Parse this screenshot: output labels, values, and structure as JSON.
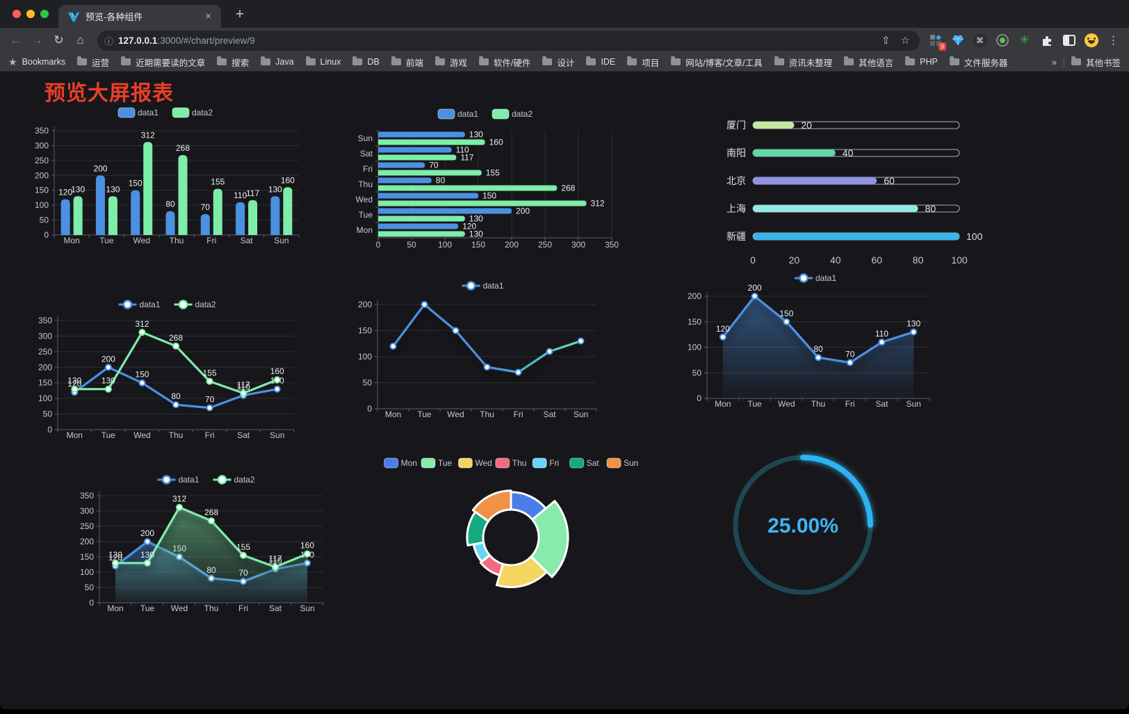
{
  "browser": {
    "tab_title": "预览-各种组件",
    "url_host": "127.0.0.1",
    "url_rest": ":3000/#/chart/preview/9",
    "bookmarks_label": "Bookmarks",
    "bookmarks": [
      "运营",
      "近期需要读的文章",
      "搜索",
      "Java",
      "Linux",
      "DB",
      "前端",
      "游戏",
      "软件/硬件",
      "设计",
      "IDE",
      "项目",
      "网站/博客/文章/工具",
      "资讯未整理",
      "其他语言",
      "PHP",
      "文件服务器"
    ],
    "other_bookmarks": "其他书签",
    "extension_badge": "9"
  },
  "icons": {
    "back": "←",
    "forward": "→",
    "reload": "↻",
    "home": "⌂",
    "info": "ⓘ",
    "share": "⇧",
    "star": "☆",
    "menu": "⋮",
    "close": "×",
    "new_tab": "+",
    "chevron": "»",
    "command": "⌘",
    "green_star": "✳",
    "bookmarks_star": "★"
  },
  "page": {
    "title": "预览大屏报表",
    "title_color": "#e93f28",
    "background": "#17171b"
  },
  "chart_data": [
    {
      "id": "grouped-bar",
      "type": "bar",
      "categories": [
        "Mon",
        "Tue",
        "Wed",
        "Thu",
        "Fri",
        "Sat",
        "Sun"
      ],
      "series": [
        {
          "name": "data1",
          "color": "#4b91e2",
          "values": [
            120,
            200,
            150,
            80,
            70,
            110,
            130
          ]
        },
        {
          "name": "data2",
          "color": "#7deda9",
          "values": [
            130,
            130,
            312,
            268,
            155,
            117,
            160
          ]
        }
      ],
      "ylim": [
        0,
        350
      ],
      "yticks": [
        0,
        50,
        100,
        150,
        200,
        250,
        300,
        350
      ],
      "legend_position": "top",
      "grid": true
    },
    {
      "id": "grouped-hbar",
      "type": "hbar",
      "categories": [
        "Mon",
        "Tue",
        "Wed",
        "Thu",
        "Fri",
        "Sat",
        "Sun"
      ],
      "series": [
        {
          "name": "data1",
          "color": "#4b91e2",
          "values": [
            120,
            200,
            150,
            80,
            70,
            110,
            130
          ]
        },
        {
          "name": "data2",
          "color": "#7deda9",
          "values": [
            130,
            130,
            312,
            268,
            155,
            117,
            160
          ]
        }
      ],
      "xlim": [
        0,
        350
      ],
      "xticks": [
        0,
        50,
        100,
        150,
        200,
        250,
        300,
        350
      ],
      "legend_position": "top",
      "grid": true
    },
    {
      "id": "progress-bars",
      "type": "progress",
      "max": 100,
      "items": [
        {
          "label": "厦门",
          "value": 20,
          "color": "#c4e7a0"
        },
        {
          "label": "南阳",
          "value": 40,
          "color": "#5cd9a6"
        },
        {
          "label": "北京",
          "value": 60,
          "color": "#8e93e3"
        },
        {
          "label": "上海",
          "value": 80,
          "color": "#92e9e3"
        },
        {
          "label": "新疆",
          "value": 100,
          "color": "#38b6e9"
        }
      ],
      "xticks": [
        0,
        20,
        40,
        60,
        80,
        100
      ]
    },
    {
      "id": "line-two-series",
      "type": "line",
      "categories": [
        "Mon",
        "Tue",
        "Wed",
        "Thu",
        "Fri",
        "Sat",
        "Sun"
      ],
      "series": [
        {
          "name": "data1",
          "color": "#4b91e2",
          "values": [
            120,
            200,
            150,
            80,
            70,
            110,
            130
          ]
        },
        {
          "name": "data2",
          "color": "#7deda9",
          "values": [
            130,
            130,
            312,
            268,
            155,
            117,
            160
          ]
        }
      ],
      "ylim": [
        0,
        350
      ],
      "yticks": [
        0,
        50,
        100,
        150,
        200,
        250,
        300,
        350
      ],
      "labels": true,
      "legend_position": "top"
    },
    {
      "id": "line-gradient",
      "type": "line",
      "categories": [
        "Mon",
        "Tue",
        "Wed",
        "Thu",
        "Fri",
        "Sat",
        "Sun"
      ],
      "series": [
        {
          "name": "data1",
          "color": "#4b91e2",
          "gradient": [
            "#4b91e2",
            "#5fe6a6"
          ],
          "values": [
            120,
            200,
            150,
            80,
            70,
            110,
            130
          ]
        }
      ],
      "ylim": [
        0,
        200
      ],
      "yticks": [
        0,
        50,
        100,
        150,
        200
      ],
      "labels": false,
      "shadow": true,
      "legend_position": "top"
    },
    {
      "id": "area-single",
      "type": "line",
      "categories": [
        "Mon",
        "Tue",
        "Wed",
        "Thu",
        "Fri",
        "Sat",
        "Sun"
      ],
      "series": [
        {
          "name": "data1",
          "color": "#4b91e2",
          "area": true,
          "values": [
            120,
            200,
            150,
            80,
            70,
            110,
            130
          ]
        }
      ],
      "ylim": [
        0,
        200
      ],
      "yticks": [
        0,
        50,
        100,
        150,
        200
      ],
      "labels": true,
      "shadow": true,
      "legend_position": "top"
    },
    {
      "id": "area-two-series",
      "type": "line",
      "categories": [
        "Mon",
        "Tue",
        "Wed",
        "Thu",
        "Fri",
        "Sat",
        "Sun"
      ],
      "series": [
        {
          "name": "data1",
          "color": "#4b91e2",
          "area": true,
          "values": [
            120,
            200,
            150,
            80,
            70,
            110,
            130
          ]
        },
        {
          "name": "data2",
          "color": "#7deda9",
          "area": true,
          "values": [
            130,
            130,
            312,
            268,
            155,
            117,
            160
          ]
        }
      ],
      "ylim": [
        0,
        350
      ],
      "yticks": [
        0,
        50,
        100,
        150,
        200,
        250,
        300,
        350
      ],
      "labels": true,
      "shadow": true,
      "legend_position": "top"
    },
    {
      "id": "rose-pie",
      "type": "pie",
      "rose": true,
      "items": [
        {
          "name": "Mon",
          "value": 120,
          "color": "#4a7de9"
        },
        {
          "name": "Tue",
          "value": 200,
          "color": "#87ecab"
        },
        {
          "name": "Wed",
          "value": 150,
          "color": "#f3d55f"
        },
        {
          "name": "Thu",
          "value": 80,
          "color": "#f56a7e"
        },
        {
          "name": "Fri",
          "value": 70,
          "color": "#67d5f6"
        },
        {
          "name": "Sat",
          "value": 110,
          "color": "#13aa80"
        },
        {
          "name": "Sun",
          "value": 130,
          "color": "#f19146"
        }
      ],
      "legend_position": "top"
    },
    {
      "id": "ring-gauge",
      "type": "gauge",
      "value": 25,
      "label": "25.00%",
      "color": "#2fb2f2",
      "track_color": "#1d4853",
      "text_color": "#41b4f5"
    }
  ]
}
